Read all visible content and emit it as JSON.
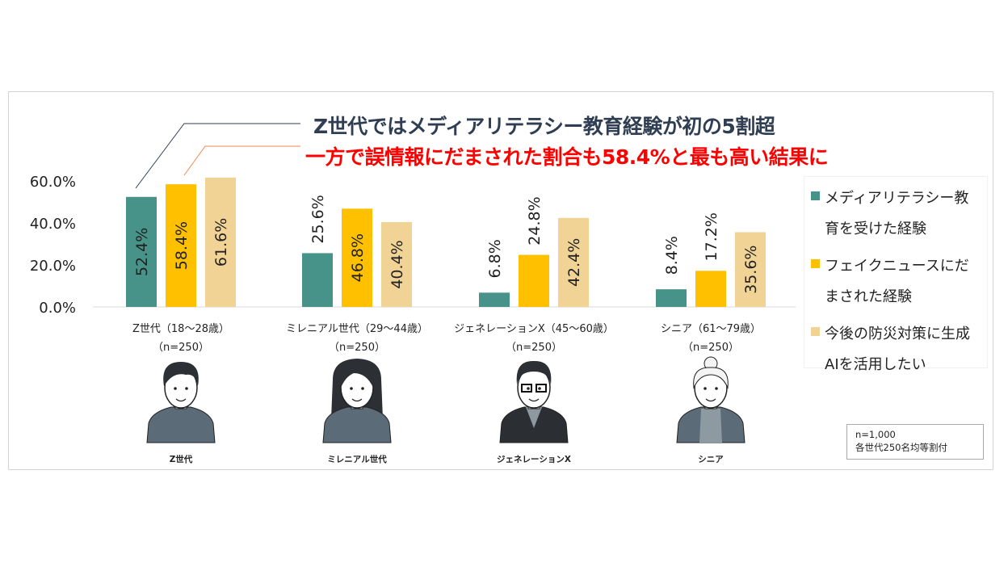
{
  "title_line1": "Z世代ではメディアリテラシー教育経験が初の5割超",
  "title_line2": "一方で誤情報にだまされた割合も58.4%と最も高い結果に",
  "note": {
    "line1": "n=1,000",
    "line2": "各世代250名均等割付"
  },
  "chart_data": {
    "type": "bar",
    "categories": [
      "Z世代（18～28歳）",
      "ミレニアル世代（29～44歳）",
      "ジェネレーションX（45～60歳）",
      "シニア（61～79歳）"
    ],
    "category_sub": [
      "（n=250）",
      "（n=250）",
      "（n=250）",
      "（n=250）"
    ],
    "avatar_labels": [
      "Z世代",
      "ミレニアル世代",
      "ジェネレーションX",
      "シニア"
    ],
    "series": [
      {
        "name": "メディアリテラシー教育を受けた経験",
        "color": "#47938a",
        "values": [
          52.4,
          25.6,
          6.8,
          8.4
        ]
      },
      {
        "name": "フェイクニュースにだまされた経験",
        "color": "#ffc000",
        "values": [
          58.4,
          46.8,
          24.8,
          17.2
        ]
      },
      {
        "name": "今後の防災対策に生成AIを活用したい",
        "color": "#f2d396",
        "values": [
          61.6,
          40.4,
          42.4,
          35.6
        ]
      }
    ],
    "value_labels": [
      [
        "52.4%",
        "25.6%",
        "6.8%",
        "8.4%"
      ],
      [
        "58.4%",
        "46.8%",
        "24.8%",
        "17.2%"
      ],
      [
        "61.6%",
        "40.4%",
        "42.4%",
        "35.6%"
      ]
    ],
    "ylim": [
      0,
      60
    ],
    "yticks": [
      "0.0%",
      "20.0%",
      "40.0%",
      "60.0%"
    ],
    "ytick_values": [
      0,
      20,
      40,
      60
    ],
    "legend_position": "right",
    "grid": false
  }
}
